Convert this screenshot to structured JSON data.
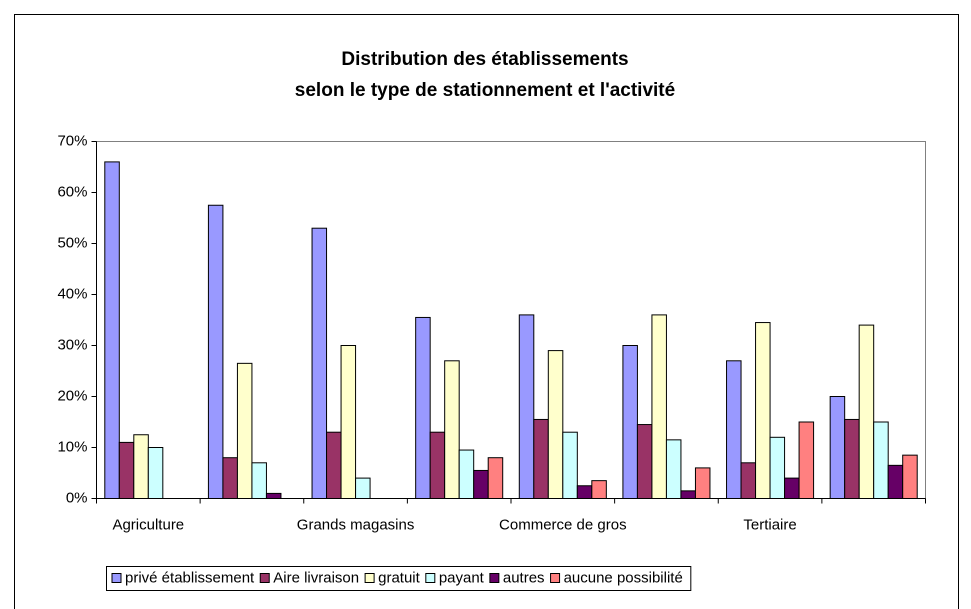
{
  "chart_data": {
    "type": "bar",
    "title": [
      "Distribution des établissements",
      "selon le type de stationnement et l'activité"
    ],
    "categories": [
      "Agriculture",
      null,
      "Grands magasins",
      null,
      "Commerce de gros",
      null,
      "Tertiaire",
      null
    ],
    "series": [
      {
        "name": "privé établissement",
        "color": "#9999ff",
        "values": [
          66,
          57.5,
          53,
          35.5,
          36,
          30,
          27,
          20
        ]
      },
      {
        "name": "Aire livraison",
        "color": "#993366",
        "values": [
          11,
          8,
          13,
          13,
          15.5,
          14.5,
          7,
          15.5
        ]
      },
      {
        "name": "gratuit",
        "color": "#ffffcc",
        "values": [
          12.5,
          26.5,
          30,
          27,
          29,
          36,
          34.5,
          34
        ]
      },
      {
        "name": "payant",
        "color": "#ccffff",
        "values": [
          10,
          7,
          4,
          9.5,
          13,
          11.5,
          12,
          15
        ]
      },
      {
        "name": "autres",
        "color": "#660066",
        "values": [
          0,
          1,
          0,
          5.5,
          2.5,
          1.5,
          4,
          6.5
        ]
      },
      {
        "name": "aucune possibilité",
        "color": "#ff8080",
        "values": [
          0,
          0,
          0,
          8,
          3.5,
          6,
          15,
          8.5
        ]
      }
    ],
    "ylim": [
      0,
      70
    ],
    "yticks": [
      {
        "value": 0,
        "label": "0%"
      },
      {
        "value": 10,
        "label": "10%"
      },
      {
        "value": 20,
        "label": "20%"
      },
      {
        "value": 30,
        "label": "30%"
      },
      {
        "value": 40,
        "label": "40%"
      },
      {
        "value": 50,
        "label": "50%"
      },
      {
        "value": 60,
        "label": "60%"
      },
      {
        "value": 70,
        "label": "70%"
      }
    ],
    "legend": "bottom"
  }
}
